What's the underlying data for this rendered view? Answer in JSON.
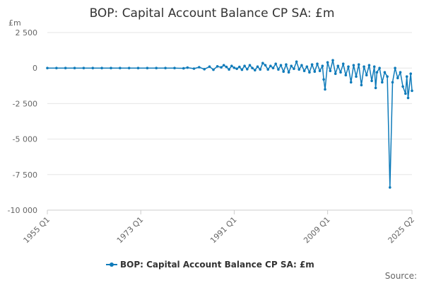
{
  "chart_data": {
    "type": "line",
    "title": "BOP: Capital Account Balance CP SA: £m",
    "unit_label": "£m",
    "ylim": [
      -10000,
      2500
    ],
    "y_ticks": [
      2500,
      0,
      -2500,
      -5000,
      -7500,
      -10000
    ],
    "y_tick_labels": [
      "2 500",
      "0",
      "-2 500",
      "-5 000",
      "-7 500",
      "-10 000"
    ],
    "x_ticks": [
      1955,
      1973,
      1991,
      2009,
      2025.25
    ],
    "x_tick_labels": [
      "1955 Q1",
      "1973 Q1",
      "1991 Q1",
      "2009 Q1",
      "2025 Q2"
    ],
    "grid": true,
    "legend_position": "bottom",
    "source_label": "Source:",
    "colors": {
      "series": "#0f7bba",
      "grid": "#e6e6e6"
    },
    "series": [
      {
        "name": "BOP: Capital Account Balance CP SA: £m",
        "x": [
          1955.0,
          1956.75,
          1958.5,
          1960.25,
          1962.0,
          1963.75,
          1965.5,
          1967.25,
          1969.0,
          1970.75,
          1972.5,
          1974.25,
          1976.0,
          1977.75,
          1979.5,
          1981.25,
          1982.0,
          1983.25,
          1984.25,
          1985.25,
          1986.25,
          1987.0,
          1987.75,
          1988.5,
          1989.0,
          1989.5,
          1990.0,
          1990.5,
          1991.0,
          1991.5,
          1992.0,
          1992.5,
          1993.0,
          1993.5,
          1994.0,
          1994.5,
          1995.0,
          1995.5,
          1996.0,
          1996.5,
          1997.0,
          1997.5,
          1998.0,
          1998.5,
          1999.0,
          1999.5,
          2000.0,
          2000.5,
          2001.0,
          2001.5,
          2002.0,
          2002.5,
          2003.0,
          2003.5,
          2004.0,
          2004.5,
          2005.0,
          2005.5,
          2006.0,
          2006.5,
          2007.0,
          2007.5,
          2008.0,
          2008.25,
          2008.5,
          2009.0,
          2009.5,
          2010.0,
          2010.5,
          2011.0,
          2011.5,
          2012.0,
          2012.5,
          2013.0,
          2013.5,
          2014.0,
          2014.5,
          2015.0,
          2015.5,
          2016.0,
          2016.5,
          2017.0,
          2017.5,
          2018.0,
          2018.25,
          2018.5,
          2019.0,
          2019.5,
          2020.0,
          2020.5,
          2021.0,
          2021.5,
          2022.0,
          2022.5,
          2023.0,
          2023.5,
          2024.0,
          2024.25,
          2024.5,
          2025.0,
          2025.25
        ],
        "values": [
          0,
          0,
          0,
          0,
          0,
          0,
          0,
          0,
          0,
          0,
          0,
          0,
          0,
          0,
          0,
          -20,
          30,
          -40,
          60,
          -80,
          100,
          -120,
          120,
          50,
          200,
          80,
          -100,
          150,
          20,
          -50,
          80,
          -120,
          150,
          -80,
          200,
          0,
          -150,
          100,
          -100,
          350,
          200,
          -100,
          150,
          0,
          300,
          -100,
          200,
          -250,
          250,
          -300,
          150,
          -50,
          450,
          -100,
          200,
          -200,
          100,
          -300,
          250,
          -250,
          300,
          -200,
          150,
          -800,
          -1500,
          400,
          -200,
          550,
          -400,
          150,
          -300,
          300,
          -500,
          100,
          -1000,
          200,
          -600,
          250,
          -1200,
          100,
          -500,
          200,
          -900,
          100,
          -1400,
          -300,
          0,
          -1000,
          -300,
          -600,
          -8400,
          -1000,
          0,
          -700,
          -300,
          -1300,
          -1800,
          -600,
          -2100,
          -400,
          -1600
        ]
      }
    ]
  }
}
